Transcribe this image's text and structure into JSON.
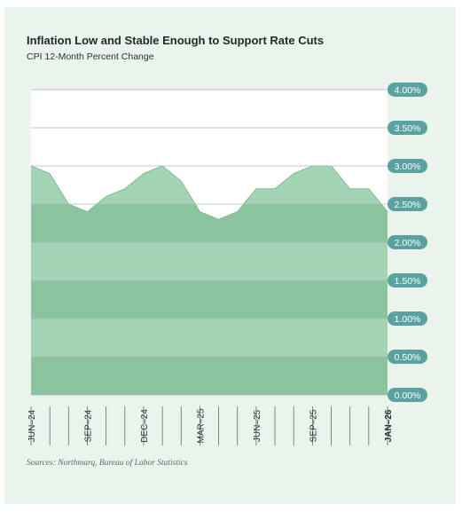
{
  "title": "Inflation Low and Stable Enough to Support Rate Cuts",
  "subtitle": "CPI 12-Month Percent Change",
  "source": "Sources: Northmarq, Bureau of Labor Statistics",
  "colors": {
    "card_background": "#eaf3ec",
    "area_dark": "#8cc4a0",
    "area_light": "#a3d4b4",
    "tick_badge": "#5aa2a0",
    "tick_text": "#ffffff"
  },
  "chart_data": {
    "type": "area",
    "title": "Inflation Low and Stable Enough to Support Rate Cuts",
    "subtitle": "CPI 12-Month Percent Change",
    "xlabel": "",
    "ylabel": "",
    "ylim": [
      0,
      4
    ],
    "y_ticks": [
      "0.00%",
      "0.50%",
      "1.00%",
      "1.50%",
      "2.00%",
      "2.50%",
      "3.00%",
      "3.50%",
      "4.00%"
    ],
    "y_tick_values": [
      0,
      0.5,
      1,
      1.5,
      2,
      2.5,
      3,
      3.5,
      4
    ],
    "y_axis_side": "right",
    "x": [
      "Jun-24",
      "Jul-24",
      "Aug-24",
      "Sep-24",
      "Oct-24",
      "Nov-24",
      "Dec-24",
      "Jan-25",
      "Feb-25",
      "Mar-25",
      "Apr-25",
      "May-25",
      "Jun-25",
      "Jul-25",
      "Aug-25",
      "Sep-25",
      "Oct-25",
      "Nov-25",
      "Dec-25",
      "Jan-26"
    ],
    "x_tick_labels": [
      {
        "index": 0,
        "label": "JUN–24",
        "bold": false
      },
      {
        "index": 3,
        "label": "SEP–24",
        "bold": false
      },
      {
        "index": 6,
        "label": "DEC–24",
        "bold": false
      },
      {
        "index": 9,
        "label": "MAR–25",
        "bold": false
      },
      {
        "index": 12,
        "label": "JUN–25",
        "bold": false
      },
      {
        "index": 15,
        "label": "SEP–25",
        "bold": false
      },
      {
        "index": 19,
        "label": "JAN–26",
        "bold": true
      }
    ],
    "series": [
      {
        "values": [
          3.0,
          2.9,
          2.5,
          2.4,
          2.6,
          2.7,
          2.9,
          3.0,
          2.8,
          2.4,
          2.3,
          2.4,
          2.7,
          2.7,
          2.9,
          3.0,
          3.0,
          2.7,
          2.7,
          2.4
        ]
      }
    ],
    "grid": true,
    "legend": "none"
  }
}
